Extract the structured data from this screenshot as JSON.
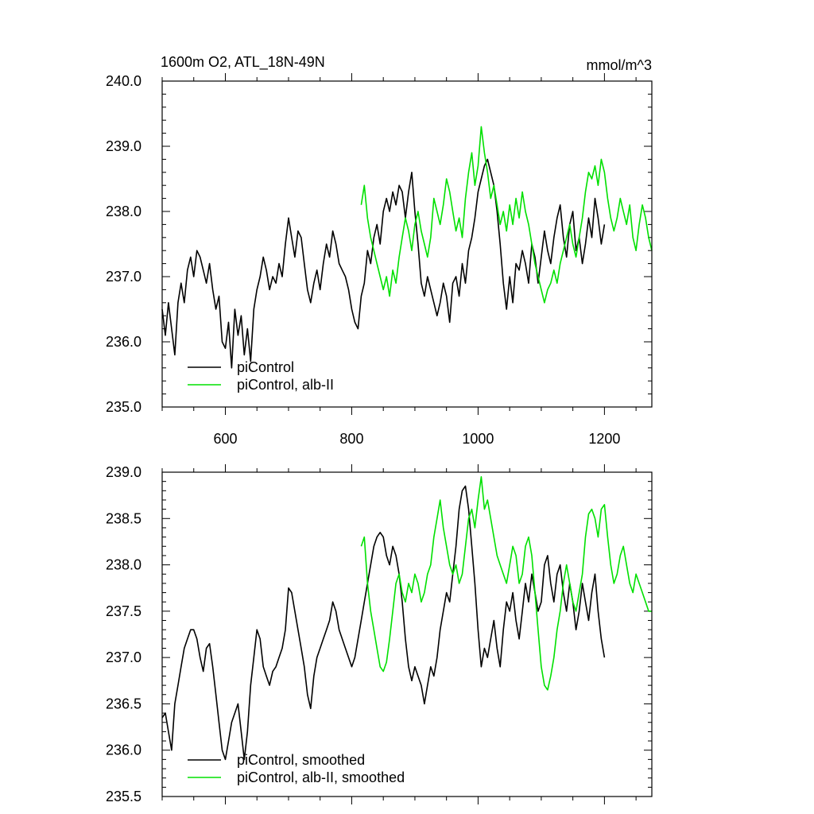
{
  "colors": {
    "piControl": "#000000",
    "albII": "#00e000"
  },
  "chart_data": [
    {
      "type": "line",
      "title": "1600m O2, ATL_18N-49N",
      "units": "mmol/m^3",
      "xlim": [
        500,
        1275
      ],
      "ylim": [
        235.0,
        240.0
      ],
      "x_ticks": [
        600,
        800,
        1000,
        1200
      ],
      "x_tick_labels": [
        "600",
        "800",
        "1000",
        "1200"
      ],
      "y_ticks": [
        235.0,
        236.0,
        237.0,
        238.0,
        239.0,
        240.0
      ],
      "y_tick_labels": [
        "235.0",
        "236.0",
        "237.0",
        "238.0",
        "239.0",
        "240.0"
      ],
      "legend": [
        "piControl",
        "piControl, alb-II"
      ],
      "series": [
        {
          "name": "piControl",
          "color": "#000000",
          "x": [
            500,
            505,
            510,
            515,
            520,
            525,
            530,
            535,
            540,
            545,
            550,
            555,
            560,
            565,
            570,
            575,
            580,
            585,
            590,
            595,
            600,
            605,
            610,
            615,
            620,
            625,
            630,
            635,
            640,
            645,
            650,
            655,
            660,
            665,
            670,
            675,
            680,
            685,
            690,
            695,
            700,
            705,
            710,
            715,
            720,
            725,
            730,
            735,
            740,
            745,
            750,
            755,
            760,
            765,
            770,
            775,
            780,
            785,
            790,
            795,
            800,
            805,
            810,
            815,
            820,
            825,
            830,
            835,
            840,
            845,
            850,
            855,
            860,
            865,
            870,
            875,
            880,
            885,
            890,
            895,
            900,
            905,
            910,
            915,
            920,
            925,
            930,
            935,
            940,
            945,
            950,
            955,
            960,
            965,
            970,
            975,
            980,
            985,
            990,
            995,
            1000,
            1005,
            1010,
            1015,
            1020,
            1025,
            1030,
            1035,
            1040,
            1045,
            1050,
            1055,
            1060,
            1065,
            1070,
            1075,
            1080,
            1085,
            1090,
            1095,
            1100,
            1105,
            1110,
            1115,
            1120,
            1125,
            1130,
            1135,
            1140,
            1145,
            1150,
            1155,
            1160,
            1165,
            1170,
            1175,
            1180,
            1185,
            1190,
            1195,
            1200
          ],
          "values": [
            236.5,
            236.1,
            236.6,
            236.2,
            235.8,
            236.6,
            236.9,
            236.6,
            237.1,
            237.3,
            237.0,
            237.4,
            237.3,
            237.1,
            236.9,
            237.2,
            236.8,
            236.5,
            236.7,
            236.0,
            235.9,
            236.3,
            235.6,
            236.5,
            236.1,
            236.4,
            235.8,
            236.2,
            235.7,
            236.5,
            236.8,
            237.0,
            237.3,
            237.1,
            236.8,
            237.0,
            236.9,
            237.2,
            237.0,
            237.5,
            237.9,
            237.6,
            237.3,
            237.7,
            237.6,
            237.2,
            236.8,
            236.6,
            236.9,
            237.1,
            236.8,
            237.2,
            237.5,
            237.3,
            237.7,
            237.5,
            237.2,
            237.1,
            237.0,
            236.8,
            236.5,
            236.3,
            236.2,
            236.7,
            236.9,
            237.4,
            237.2,
            237.6,
            237.8,
            237.5,
            238.0,
            238.2,
            238.0,
            238.3,
            238.1,
            238.4,
            238.3,
            237.9,
            238.3,
            238.6,
            238.0,
            237.5,
            236.9,
            236.7,
            237.0,
            236.8,
            236.6,
            236.4,
            236.6,
            236.9,
            236.7,
            236.3,
            236.9,
            237.0,
            236.7,
            237.2,
            236.9,
            237.4,
            237.6,
            237.9,
            238.3,
            238.5,
            238.7,
            238.8,
            238.6,
            238.4,
            238.0,
            237.5,
            236.9,
            236.5,
            237.0,
            236.6,
            237.2,
            237.1,
            237.4,
            237.2,
            236.9,
            237.5,
            237.3,
            236.9,
            237.3,
            237.7,
            237.4,
            237.2,
            237.6,
            237.9,
            238.1,
            237.6,
            237.3,
            237.8,
            238.0,
            237.4,
            237.6,
            237.2,
            237.5,
            237.9,
            237.6,
            238.2,
            237.9,
            237.5,
            237.8
          ]
        },
        {
          "name": "piControl, alb-II",
          "color": "#00e000",
          "x": [
            815,
            820,
            825,
            830,
            835,
            840,
            845,
            850,
            855,
            860,
            865,
            870,
            875,
            880,
            885,
            890,
            895,
            900,
            905,
            910,
            915,
            920,
            925,
            930,
            935,
            940,
            945,
            950,
            955,
            960,
            965,
            970,
            975,
            980,
            985,
            990,
            995,
            1000,
            1005,
            1010,
            1015,
            1020,
            1025,
            1030,
            1035,
            1040,
            1045,
            1050,
            1055,
            1060,
            1065,
            1070,
            1075,
            1080,
            1085,
            1090,
            1095,
            1100,
            1105,
            1110,
            1115,
            1120,
            1125,
            1130,
            1135,
            1140,
            1145,
            1150,
            1155,
            1160,
            1165,
            1170,
            1175,
            1180,
            1185,
            1190,
            1195,
            1200,
            1205,
            1210,
            1215,
            1220,
            1225,
            1230,
            1235,
            1240,
            1245,
            1250,
            1255,
            1260,
            1265,
            1270,
            1275
          ],
          "values": [
            238.1,
            238.4,
            237.9,
            237.6,
            237.4,
            237.2,
            237.0,
            236.8,
            237.0,
            236.7,
            237.1,
            236.9,
            237.3,
            237.6,
            237.9,
            237.7,
            237.4,
            237.8,
            238.0,
            237.7,
            237.5,
            237.3,
            237.6,
            238.2,
            238.0,
            237.8,
            238.1,
            238.5,
            238.3,
            238.0,
            237.7,
            237.9,
            237.6,
            238.2,
            238.6,
            238.9,
            238.4,
            238.7,
            239.3,
            238.9,
            238.6,
            238.2,
            238.4,
            238.1,
            237.8,
            238.0,
            237.7,
            238.1,
            237.8,
            238.2,
            237.9,
            238.3,
            238.0,
            237.8,
            237.5,
            237.2,
            237.0,
            236.8,
            236.6,
            236.8,
            236.9,
            237.1,
            236.9,
            237.2,
            237.4,
            237.6,
            237.8,
            237.5,
            237.3,
            237.6,
            237.9,
            238.3,
            238.6,
            238.5,
            238.7,
            238.4,
            238.8,
            238.6,
            238.2,
            237.9,
            237.7,
            237.9,
            238.2,
            238.0,
            237.8,
            238.1,
            237.6,
            237.4,
            237.8,
            238.1,
            237.9,
            237.6,
            237.4
          ]
        }
      ]
    },
    {
      "type": "line",
      "xlim": [
        500,
        1275
      ],
      "ylim": [
        235.5,
        239.0
      ],
      "x_ticks": [
        600,
        800,
        1000,
        1200
      ],
      "y_ticks": [
        235.5,
        236.0,
        236.5,
        237.0,
        237.5,
        238.0,
        238.5,
        239.0
      ],
      "y_tick_labels": [
        "235.5",
        "236.0",
        "236.5",
        "237.0",
        "237.5",
        "238.0",
        "238.5",
        "239.0"
      ],
      "legend": [
        "piControl, smoothed",
        "piControl, alb-II, smoothed"
      ],
      "series": [
        {
          "name": "piControl, smoothed",
          "color": "#000000",
          "x": [
            500,
            505,
            510,
            515,
            520,
            525,
            530,
            535,
            540,
            545,
            550,
            555,
            560,
            565,
            570,
            575,
            580,
            585,
            590,
            595,
            600,
            605,
            610,
            615,
            620,
            625,
            630,
            635,
            640,
            645,
            650,
            655,
            660,
            665,
            670,
            675,
            680,
            685,
            690,
            695,
            700,
            705,
            710,
            715,
            720,
            725,
            730,
            735,
            740,
            745,
            750,
            755,
            760,
            765,
            770,
            775,
            780,
            785,
            790,
            795,
            800,
            805,
            810,
            815,
            820,
            825,
            830,
            835,
            840,
            845,
            850,
            855,
            860,
            865,
            870,
            875,
            880,
            885,
            890,
            895,
            900,
            905,
            910,
            915,
            920,
            925,
            930,
            935,
            940,
            945,
            950,
            955,
            960,
            965,
            970,
            975,
            980,
            985,
            990,
            995,
            1000,
            1005,
            1010,
            1015,
            1020,
            1025,
            1030,
            1035,
            1040,
            1045,
            1050,
            1055,
            1060,
            1065,
            1070,
            1075,
            1080,
            1085,
            1090,
            1095,
            1100,
            1105,
            1110,
            1115,
            1120,
            1125,
            1130,
            1135,
            1140,
            1145,
            1150,
            1155,
            1160,
            1165,
            1170,
            1175,
            1180,
            1185,
            1190,
            1195,
            1200
          ],
          "values": [
            236.35,
            236.4,
            236.2,
            236.0,
            236.5,
            236.7,
            236.9,
            237.1,
            237.2,
            237.3,
            237.3,
            237.2,
            237.0,
            236.85,
            237.1,
            237.15,
            236.9,
            236.6,
            236.3,
            236.0,
            235.9,
            236.1,
            236.3,
            236.4,
            236.5,
            236.2,
            235.9,
            236.2,
            236.7,
            237.0,
            237.3,
            237.2,
            236.9,
            236.8,
            236.7,
            236.85,
            236.9,
            237.0,
            237.1,
            237.3,
            237.75,
            237.7,
            237.5,
            237.3,
            237.1,
            236.9,
            236.6,
            236.45,
            236.8,
            237.0,
            237.1,
            237.2,
            237.3,
            237.4,
            237.6,
            237.5,
            237.3,
            237.2,
            237.1,
            237.0,
            236.9,
            237.0,
            237.2,
            237.4,
            237.6,
            237.8,
            238.0,
            238.2,
            238.3,
            238.35,
            238.3,
            238.1,
            238.0,
            238.2,
            238.1,
            237.9,
            237.6,
            237.2,
            236.9,
            236.75,
            236.9,
            236.8,
            236.7,
            236.5,
            236.7,
            236.9,
            236.8,
            237.0,
            237.3,
            237.5,
            237.7,
            237.6,
            237.9,
            238.2,
            238.6,
            238.8,
            238.85,
            238.6,
            238.2,
            237.8,
            237.3,
            236.9,
            237.1,
            237.0,
            237.2,
            237.4,
            237.1,
            236.9,
            237.3,
            237.6,
            237.5,
            237.7,
            237.4,
            237.2,
            237.5,
            237.8,
            237.6,
            237.9,
            237.7,
            237.5,
            237.6,
            238.0,
            238.1,
            237.8,
            237.6,
            237.9,
            238.0,
            237.7,
            237.5,
            237.8,
            237.6,
            237.3,
            237.5,
            237.8,
            237.6,
            237.4,
            237.7,
            237.9,
            237.5,
            237.2,
            237.0
          ]
        },
        {
          "name": "piControl, alb-II, smoothed",
          "color": "#00e000",
          "x": [
            815,
            820,
            825,
            830,
            835,
            840,
            845,
            850,
            855,
            860,
            865,
            870,
            875,
            880,
            885,
            890,
            895,
            900,
            905,
            910,
            915,
            920,
            925,
            930,
            935,
            940,
            945,
            950,
            955,
            960,
            965,
            970,
            975,
            980,
            985,
            990,
            995,
            1000,
            1005,
            1010,
            1015,
            1020,
            1025,
            1030,
            1035,
            1040,
            1045,
            1050,
            1055,
            1060,
            1065,
            1070,
            1075,
            1080,
            1085,
            1090,
            1095,
            1100,
            1105,
            1110,
            1115,
            1120,
            1125,
            1130,
            1135,
            1140,
            1145,
            1150,
            1155,
            1160,
            1165,
            1170,
            1175,
            1180,
            1185,
            1190,
            1195,
            1200,
            1205,
            1210,
            1215,
            1220,
            1225,
            1230,
            1235,
            1240,
            1245,
            1250,
            1255,
            1260,
            1265,
            1270,
            1275
          ],
          "values": [
            238.2,
            238.3,
            237.8,
            237.5,
            237.3,
            237.1,
            236.9,
            236.85,
            236.95,
            237.2,
            237.5,
            237.8,
            237.9,
            237.7,
            237.6,
            237.8,
            237.7,
            237.9,
            237.8,
            237.6,
            237.7,
            237.9,
            238.0,
            238.3,
            238.5,
            238.7,
            238.4,
            238.2,
            238.0,
            237.9,
            238.0,
            237.8,
            237.9,
            238.2,
            238.5,
            238.6,
            238.4,
            238.7,
            238.95,
            238.6,
            238.7,
            238.5,
            238.3,
            238.1,
            238.0,
            237.9,
            237.8,
            238.0,
            238.2,
            238.1,
            237.8,
            237.9,
            238.2,
            238.3,
            238.1,
            237.7,
            237.3,
            236.9,
            236.7,
            236.65,
            236.8,
            237.0,
            237.3,
            237.5,
            237.8,
            238.0,
            237.8,
            237.6,
            237.5,
            237.7,
            237.9,
            238.3,
            238.55,
            238.6,
            238.5,
            238.3,
            238.6,
            238.65,
            238.3,
            238.0,
            237.8,
            237.9,
            238.1,
            238.2,
            238.0,
            237.8,
            237.7,
            237.9,
            237.8,
            237.7,
            237.6,
            237.5,
            237.5
          ]
        }
      ]
    }
  ]
}
